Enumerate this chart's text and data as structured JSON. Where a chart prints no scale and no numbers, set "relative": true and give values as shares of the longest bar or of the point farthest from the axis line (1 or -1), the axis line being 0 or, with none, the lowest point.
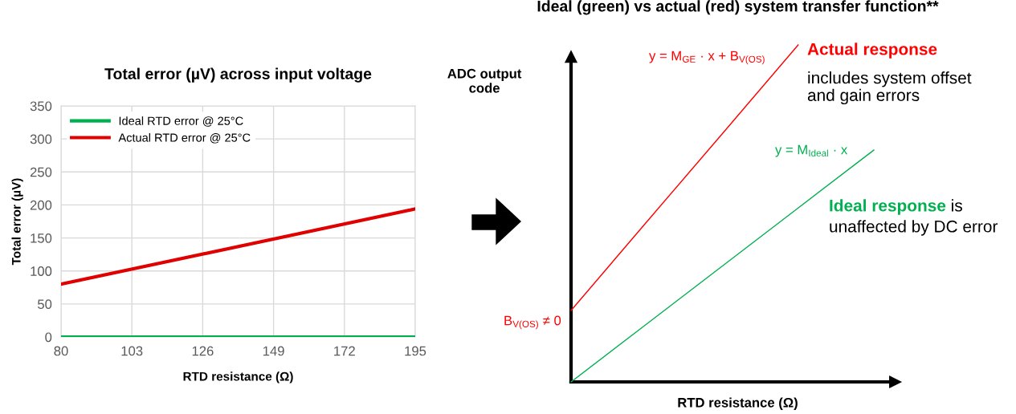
{
  "chart_data": [
    {
      "type": "line",
      "title": "Total error (µV) across input voltage",
      "xlabel": "RTD resistance (Ω)",
      "ylabel": "Total error (µV)",
      "x": [
        80,
        195
      ],
      "series": [
        {
          "name": "Ideal RTD error @ 25°C",
          "color": "#00b050",
          "values": [
            0,
            0
          ]
        },
        {
          "name": "Actual RTD error @ 25°C",
          "color": "#e00000",
          "values": [
            80,
            194
          ]
        }
      ],
      "xlim": [
        80,
        195
      ],
      "xticks": [
        80,
        103,
        126,
        149,
        172,
        195
      ],
      "ylim": [
        0,
        350
      ],
      "yticks": [
        0,
        50,
        100,
        150,
        200,
        250,
        300,
        350
      ],
      "grid": true,
      "legend": "top left"
    },
    {
      "type": "line",
      "relative": true,
      "title": "Ideal (green) vs actual (red) system transfer function**",
      "xlabel": "RTD resistance (Ω)",
      "ylabel": "ADC output\ncode",
      "categories": [
        null,
        null,
        null,
        null,
        null
      ],
      "series": [
        {
          "color": "#ff0000",
          "values": [
            0.212,
            0.475,
            0.737,
            1,
            null
          ]
        },
        {
          "color": "#00b050",
          "values": [
            0,
            0.172,
            0.344,
            0.516,
            0.688
          ]
        }
      ],
      "annotations": [
        "y = M$_{GE}$ · x + B$_{V(OS)}$",
        "y = M$_{Ideal}$ · x",
        "B$_{V(OS)}$ ≠ 0",
        "Actual response",
        "includes system offset\nand gain errors",
        "Ideal response",
        "is",
        "unaffected by DC error"
      ]
    }
  ]
}
